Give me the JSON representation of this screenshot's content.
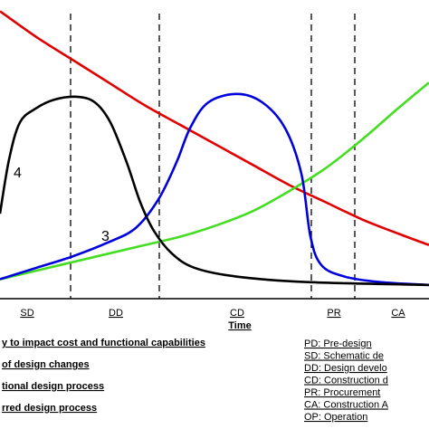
{
  "chart_data": {
    "type": "line",
    "xlabel": "Time",
    "ylabel": "",
    "phases": [
      "SD",
      "DD",
      "CD",
      "PR",
      "CA"
    ],
    "series": [
      {
        "color": "#e00000",
        "points": [
          [
            0,
            97
          ],
          [
            40,
            88
          ],
          [
            80,
            80
          ],
          [
            120,
            72
          ],
          [
            160,
            64
          ],
          [
            200,
            57
          ],
          [
            240,
            50
          ],
          [
            280,
            43
          ],
          [
            320,
            36
          ],
          [
            360,
            30
          ],
          [
            400,
            24
          ],
          [
            440,
            19
          ],
          [
            474,
            15
          ]
        ]
      },
      {
        "color": "#44dd22",
        "points": [
          [
            0,
            3
          ],
          [
            40,
            6
          ],
          [
            80,
            9
          ],
          [
            120,
            12
          ],
          [
            160,
            15
          ],
          [
            200,
            18
          ],
          [
            240,
            22
          ],
          [
            280,
            27
          ],
          [
            320,
            34
          ],
          [
            360,
            42
          ],
          [
            400,
            52
          ],
          [
            440,
            63
          ],
          [
            474,
            72
          ]
        ]
      },
      {
        "label": "3",
        "color": "#0000dd",
        "points": [
          [
            0,
            3
          ],
          [
            40,
            7
          ],
          [
            80,
            11
          ],
          [
            120,
            16
          ],
          [
            150,
            21
          ],
          [
            175,
            31
          ],
          [
            195,
            44
          ],
          [
            210,
            56
          ],
          [
            230,
            65
          ],
          [
            262,
            68
          ],
          [
            290,
            65
          ],
          [
            315,
            56
          ],
          [
            333,
            40
          ],
          [
            343,
            18
          ],
          [
            355,
            8
          ],
          [
            380,
            4
          ],
          [
            420,
            2
          ],
          [
            474,
            1
          ]
        ]
      },
      {
        "label": "4",
        "color": "#000000",
        "points": [
          [
            0,
            26
          ],
          [
            10,
            45
          ],
          [
            22,
            58
          ],
          [
            40,
            63
          ],
          [
            60,
            66
          ],
          [
            85,
            67
          ],
          [
            105,
            65
          ],
          [
            122,
            58
          ],
          [
            140,
            44
          ],
          [
            155,
            30
          ],
          [
            170,
            20
          ],
          [
            190,
            12
          ],
          [
            215,
            7
          ],
          [
            260,
            4
          ],
          [
            340,
            2
          ],
          [
            474,
            1
          ]
        ]
      }
    ]
  },
  "legend": {
    "items": [
      "y to impact cost and functional capabilities",
      "of design changes",
      "tional design process",
      "rred design process"
    ]
  },
  "key": {
    "items": [
      "PD: Pre-design",
      "SD: Schematic de",
      "DD: Design develo",
      "CD: Construction d",
      "PR: Procurement",
      "CA: Construction A",
      "OP: Operation"
    ]
  }
}
